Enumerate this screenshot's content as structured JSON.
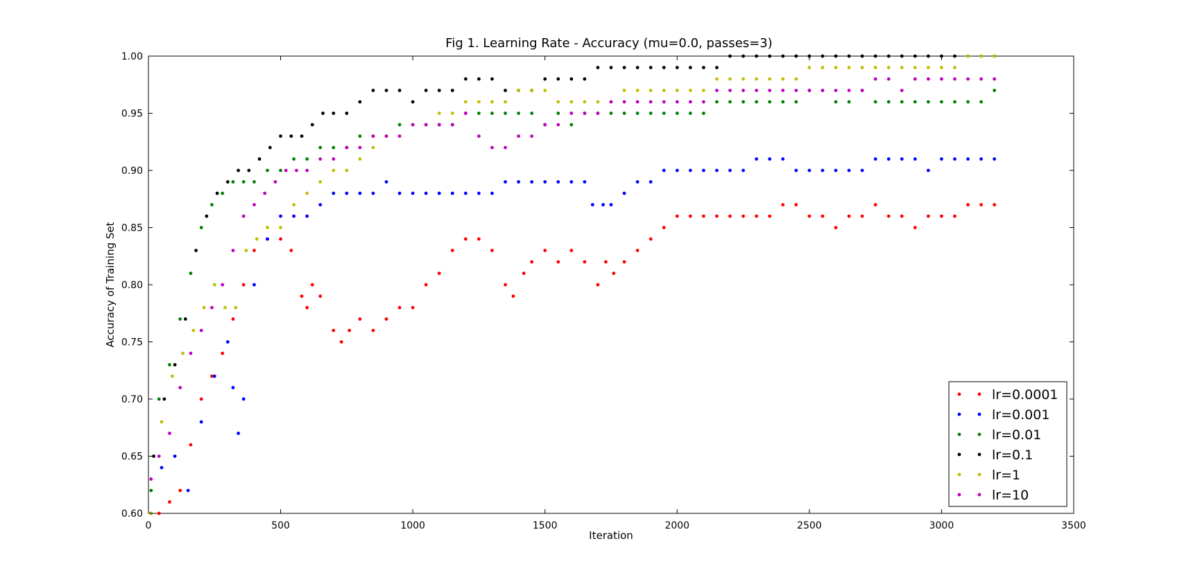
{
  "chart_data": {
    "type": "scatter",
    "title": "Fig 1. Learning Rate - Accuracy (mu=0.0, passes=3)",
    "xlabel": "Iteration",
    "ylabel": "Accuracy of Training Set",
    "xlim": [
      0,
      3500
    ],
    "ylim": [
      0.6,
      1.0
    ],
    "xticks": [
      0,
      500,
      1000,
      1500,
      2000,
      2500,
      3000,
      3500
    ],
    "xtick_labels": [
      "0",
      "500",
      "1000",
      "1500",
      "2000",
      "2500",
      "3000",
      "3500"
    ],
    "yticks": [
      0.6,
      0.65,
      0.7,
      0.75,
      0.8,
      0.85,
      0.9,
      0.95,
      1.0
    ],
    "ytick_labels": [
      "0.60",
      "0.65",
      "0.70",
      "0.75",
      "0.80",
      "0.85",
      "0.90",
      "0.95",
      "1.00"
    ],
    "legend_position": "lower-right",
    "grid": false,
    "series": [
      {
        "name": "lr=0.0001",
        "color": "#ff0000",
        "x": [
          10,
          40,
          80,
          120,
          160,
          200,
          240,
          280,
          320,
          360,
          400,
          450,
          500,
          540,
          580,
          600,
          620,
          650,
          700,
          730,
          760,
          800,
          850,
          900,
          950,
          1000,
          1050,
          1100,
          1150,
          1200,
          1250,
          1300,
          1350,
          1380,
          1420,
          1450,
          1500,
          1550,
          1600,
          1650,
          1700,
          1730,
          1760,
          1800,
          1850,
          1900,
          1950,
          2000,
          2050,
          2100,
          2150,
          2200,
          2250,
          2300,
          2350,
          2400,
          2450,
          2500,
          2550,
          2600,
          2650,
          2700,
          2750,
          2800,
          2850,
          2900,
          2950,
          3000,
          3050,
          3100,
          3150,
          3200
        ],
        "y": [
          0.6,
          0.6,
          0.61,
          0.62,
          0.66,
          0.7,
          0.72,
          0.74,
          0.77,
          0.8,
          0.83,
          0.84,
          0.84,
          0.83,
          0.79,
          0.78,
          0.8,
          0.79,
          0.76,
          0.75,
          0.76,
          0.77,
          0.76,
          0.77,
          0.78,
          0.78,
          0.8,
          0.81,
          0.83,
          0.84,
          0.84,
          0.83,
          0.8,
          0.79,
          0.81,
          0.82,
          0.83,
          0.82,
          0.83,
          0.82,
          0.8,
          0.82,
          0.81,
          0.82,
          0.83,
          0.84,
          0.85,
          0.86,
          0.86,
          0.86,
          0.86,
          0.86,
          0.86,
          0.86,
          0.86,
          0.87,
          0.87,
          0.86,
          0.86,
          0.85,
          0.86,
          0.86,
          0.87,
          0.86,
          0.86,
          0.85,
          0.86,
          0.86,
          0.86,
          0.87,
          0.87,
          0.87
        ]
      },
      {
        "name": "lr=0.001",
        "color": "#0000ff",
        "x": [
          50,
          100,
          150,
          200,
          250,
          300,
          320,
          340,
          360,
          400,
          450,
          500,
          550,
          600,
          650,
          700,
          750,
          800,
          850,
          900,
          950,
          1000,
          1050,
          1100,
          1150,
          1200,
          1250,
          1300,
          1350,
          1400,
          1450,
          1500,
          1550,
          1600,
          1650,
          1680,
          1720,
          1750,
          1800,
          1850,
          1900,
          1950,
          2000,
          2050,
          2100,
          2150,
          2200,
          2250,
          2300,
          2350,
          2400,
          2450,
          2500,
          2550,
          2600,
          2650,
          2700,
          2750,
          2800,
          2850,
          2900,
          2950,
          3000,
          3050,
          3100,
          3150,
          3200
        ],
        "y": [
          0.64,
          0.65,
          0.62,
          0.68,
          0.72,
          0.75,
          0.71,
          0.67,
          0.7,
          0.8,
          0.84,
          0.86,
          0.86,
          0.86,
          0.87,
          0.88,
          0.88,
          0.88,
          0.88,
          0.89,
          0.88,
          0.88,
          0.88,
          0.88,
          0.88,
          0.88,
          0.88,
          0.88,
          0.89,
          0.89,
          0.89,
          0.89,
          0.89,
          0.89,
          0.89,
          0.87,
          0.87,
          0.87,
          0.88,
          0.89,
          0.89,
          0.9,
          0.9,
          0.9,
          0.9,
          0.9,
          0.9,
          0.9,
          0.91,
          0.91,
          0.91,
          0.9,
          0.9,
          0.9,
          0.9,
          0.9,
          0.9,
          0.91,
          0.91,
          0.91,
          0.91,
          0.9,
          0.91,
          0.91,
          0.91,
          0.91,
          0.91
        ]
      },
      {
        "name": "lr=0.01",
        "color": "#008000",
        "x": [
          10,
          40,
          80,
          120,
          160,
          200,
          240,
          280,
          320,
          360,
          400,
          450,
          500,
          550,
          600,
          650,
          700,
          750,
          800,
          850,
          900,
          950,
          1000,
          1050,
          1100,
          1150,
          1200,
          1250,
          1300,
          1350,
          1400,
          1450,
          1500,
          1550,
          1600,
          1650,
          1700,
          1750,
          1800,
          1850,
          1900,
          1950,
          2000,
          2050,
          2100,
          2150,
          2200,
          2250,
          2300,
          2350,
          2400,
          2450,
          2500,
          2550,
          2600,
          2650,
          2700,
          2750,
          2800,
          2850,
          2900,
          2950,
          3000,
          3050,
          3100,
          3150,
          3200
        ],
        "y": [
          0.62,
          0.7,
          0.73,
          0.77,
          0.81,
          0.85,
          0.87,
          0.88,
          0.89,
          0.89,
          0.89,
          0.9,
          0.9,
          0.91,
          0.91,
          0.92,
          0.92,
          0.92,
          0.93,
          0.93,
          0.93,
          0.94,
          0.94,
          0.94,
          0.94,
          0.94,
          0.95,
          0.95,
          0.95,
          0.95,
          0.95,
          0.95,
          0.94,
          0.95,
          0.94,
          0.95,
          0.95,
          0.95,
          0.95,
          0.95,
          0.95,
          0.95,
          0.95,
          0.95,
          0.95,
          0.96,
          0.96,
          0.96,
          0.96,
          0.96,
          0.96,
          0.96,
          0.97,
          0.97,
          0.96,
          0.96,
          0.97,
          0.96,
          0.96,
          0.96,
          0.96,
          0.96,
          0.96,
          0.96,
          0.96,
          0.96,
          0.97
        ]
      },
      {
        "name": "lr=0.1",
        "color": "#000000",
        "x": [
          20,
          60,
          100,
          140,
          180,
          220,
          260,
          300,
          340,
          380,
          420,
          460,
          500,
          540,
          580,
          620,
          660,
          700,
          750,
          800,
          850,
          900,
          950,
          1000,
          1050,
          1100,
          1150,
          1200,
          1250,
          1300,
          1350,
          1400,
          1450,
          1500,
          1550,
          1600,
          1650,
          1700,
          1750,
          1800,
          1850,
          1900,
          1950,
          2000,
          2050,
          2100,
          2150,
          2200,
          2250,
          2300,
          2350,
          2400,
          2450,
          2500,
          2550,
          2600,
          2650,
          2700,
          2750,
          2800,
          2850,
          2900,
          2950,
          3000,
          3050,
          3100,
          3150,
          3200
        ],
        "y": [
          0.65,
          0.7,
          0.73,
          0.77,
          0.83,
          0.86,
          0.88,
          0.89,
          0.9,
          0.9,
          0.91,
          0.92,
          0.93,
          0.93,
          0.93,
          0.94,
          0.95,
          0.95,
          0.95,
          0.96,
          0.97,
          0.97,
          0.97,
          0.96,
          0.97,
          0.97,
          0.97,
          0.98,
          0.98,
          0.98,
          0.97,
          0.97,
          0.97,
          0.98,
          0.98,
          0.98,
          0.98,
          0.99,
          0.99,
          0.99,
          0.99,
          0.99,
          0.99,
          0.99,
          0.99,
          0.99,
          0.99,
          1.0,
          1.0,
          1.0,
          1.0,
          1.0,
          1.0,
          1.0,
          1.0,
          1.0,
          1.0,
          1.0,
          1.0,
          1.0,
          1.0,
          1.0,
          1.0,
          1.0,
          1.0,
          1.0,
          1.0,
          1.0
        ]
      },
      {
        "name": "lr=1",
        "color": "#bfbf00",
        "x": [
          10,
          50,
          90,
          130,
          170,
          210,
          250,
          290,
          330,
          370,
          410,
          450,
          500,
          550,
          600,
          650,
          700,
          750,
          800,
          850,
          900,
          950,
          1000,
          1050,
          1100,
          1150,
          1200,
          1250,
          1300,
          1350,
          1400,
          1450,
          1500,
          1550,
          1600,
          1650,
          1700,
          1750,
          1800,
          1850,
          1900,
          1950,
          2000,
          2050,
          2100,
          2150,
          2200,
          2250,
          2300,
          2350,
          2400,
          2450,
          2500,
          2550,
          2600,
          2650,
          2700,
          2750,
          2800,
          2850,
          2900,
          2950,
          3000,
          3050,
          3100,
          3150,
          3200
        ],
        "y": [
          0.6,
          0.68,
          0.72,
          0.74,
          0.76,
          0.78,
          0.8,
          0.78,
          0.78,
          0.83,
          0.84,
          0.85,
          0.85,
          0.87,
          0.88,
          0.89,
          0.9,
          0.9,
          0.91,
          0.92,
          0.93,
          0.93,
          0.94,
          0.94,
          0.95,
          0.95,
          0.96,
          0.96,
          0.96,
          0.96,
          0.97,
          0.97,
          0.97,
          0.96,
          0.96,
          0.96,
          0.96,
          0.96,
          0.97,
          0.97,
          0.97,
          0.97,
          0.97,
          0.97,
          0.97,
          0.98,
          0.98,
          0.98,
          0.98,
          0.98,
          0.98,
          0.98,
          0.99,
          0.99,
          0.99,
          0.99,
          0.99,
          0.99,
          0.99,
          0.99,
          0.99,
          0.99,
          0.99,
          0.99,
          1.0,
          1.0,
          1.0
        ]
      },
      {
        "name": "lr=10",
        "color": "#bf00bf",
        "x": [
          10,
          40,
          80,
          120,
          160,
          200,
          240,
          280,
          320,
          360,
          400,
          440,
          480,
          520,
          560,
          600,
          650,
          700,
          750,
          800,
          850,
          900,
          950,
          1000,
          1050,
          1100,
          1150,
          1200,
          1250,
          1300,
          1350,
          1400,
          1450,
          1500,
          1550,
          1600,
          1650,
          1700,
          1750,
          1800,
          1850,
          1900,
          1950,
          2000,
          2050,
          2100,
          2150,
          2200,
          2250,
          2300,
          2350,
          2400,
          2450,
          2500,
          2550,
          2600,
          2650,
          2700,
          2750,
          2800,
          2850,
          2900,
          2950,
          3000,
          3050,
          3100,
          3150,
          3200
        ],
        "y": [
          0.63,
          0.65,
          0.67,
          0.71,
          0.74,
          0.76,
          0.78,
          0.8,
          0.83,
          0.86,
          0.87,
          0.88,
          0.89,
          0.9,
          0.9,
          0.9,
          0.91,
          0.91,
          0.92,
          0.92,
          0.93,
          0.93,
          0.93,
          0.94,
          0.94,
          0.94,
          0.94,
          0.95,
          0.93,
          0.92,
          0.92,
          0.93,
          0.93,
          0.94,
          0.94,
          0.95,
          0.95,
          0.95,
          0.96,
          0.96,
          0.96,
          0.96,
          0.96,
          0.96,
          0.96,
          0.96,
          0.97,
          0.97,
          0.97,
          0.97,
          0.97,
          0.97,
          0.97,
          0.97,
          0.97,
          0.97,
          0.97,
          0.97,
          0.98,
          0.98,
          0.97,
          0.98,
          0.98,
          0.98,
          0.98,
          0.98,
          0.98,
          0.98
        ]
      }
    ]
  }
}
